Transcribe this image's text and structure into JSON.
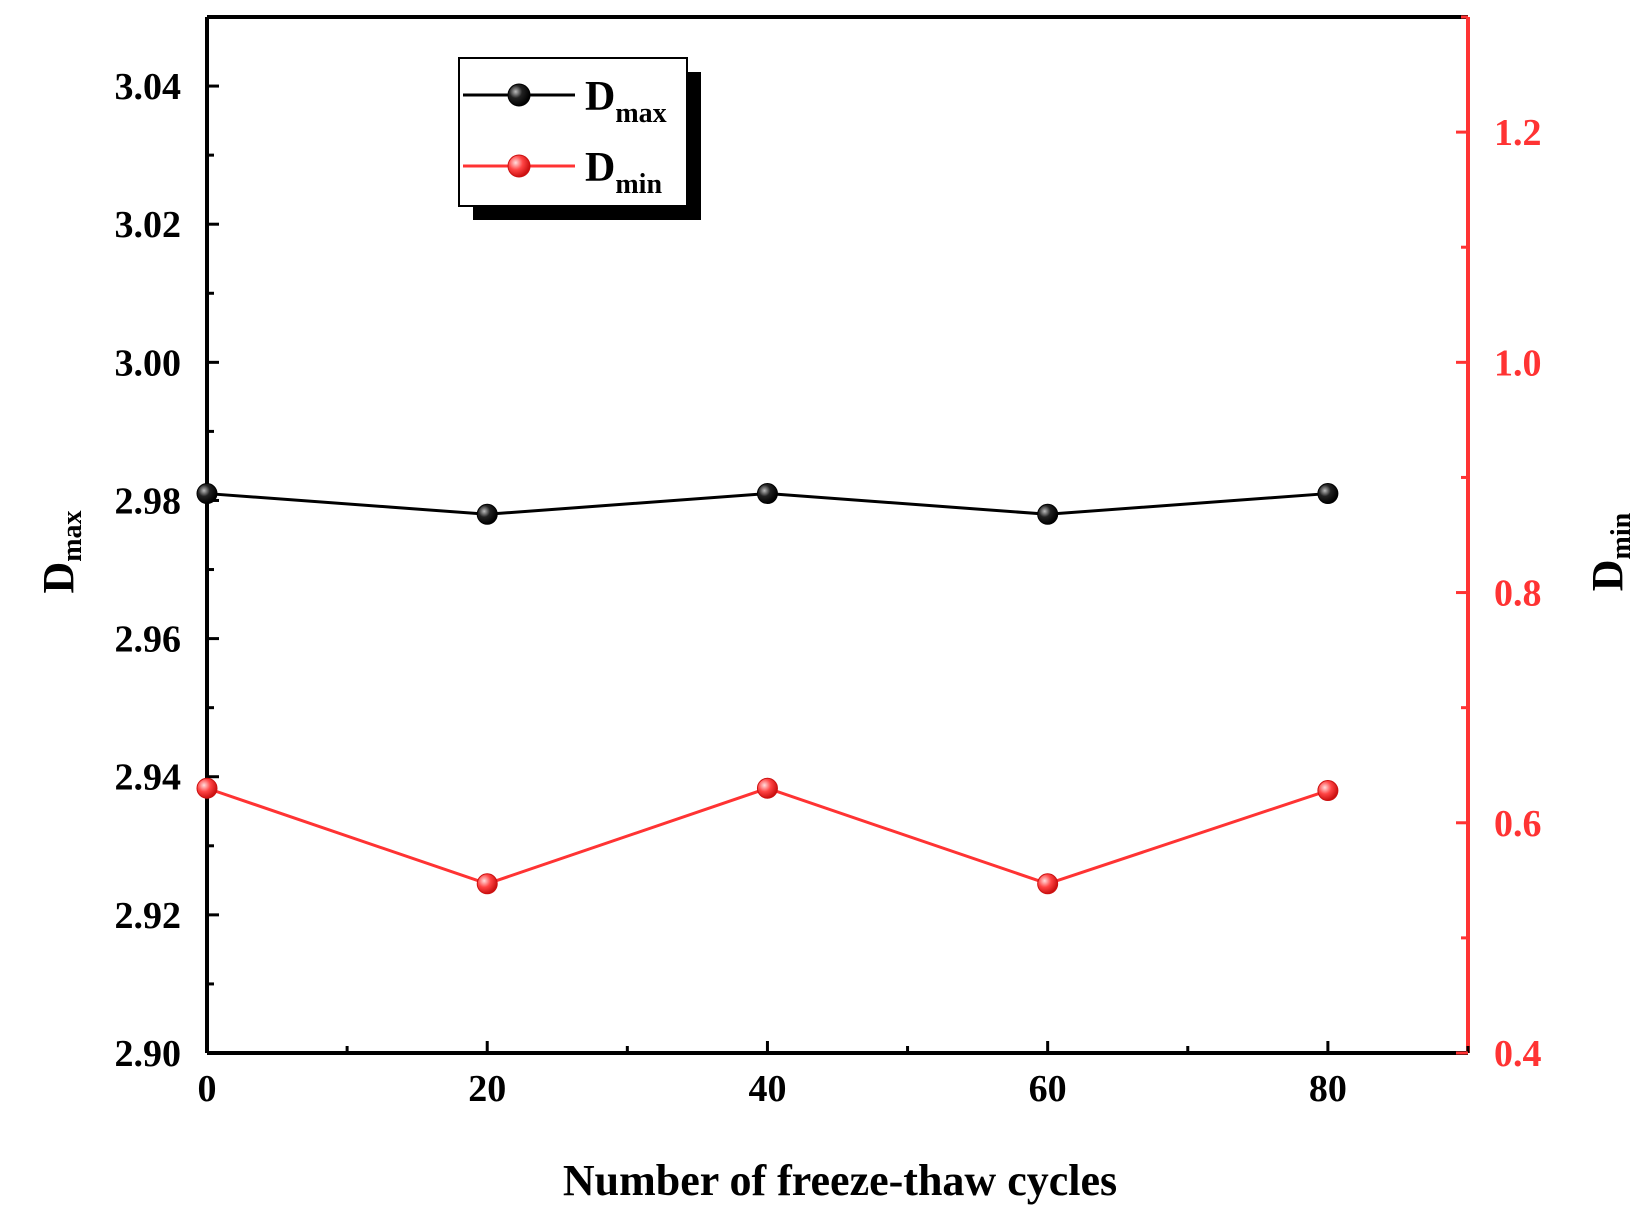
{
  "chart_data": {
    "type": "line",
    "x": [
      0,
      20,
      40,
      60,
      80
    ],
    "xlabel": "Number of freeze-thaw cycles",
    "xlim": [
      0,
      90
    ],
    "xticks": [
      "0",
      "20",
      "40",
      "60",
      "80"
    ],
    "ylabel_left": {
      "main": "D",
      "sub": "max"
    },
    "ylabel_right": {
      "main": "D",
      "sub": "min"
    },
    "ylim_left": [
      2.9,
      3.05
    ],
    "ylim_right": [
      0.4,
      1.3
    ],
    "yticks_left": [
      "2.90",
      "2.92",
      "2.94",
      "2.96",
      "2.98",
      "3.00",
      "3.02",
      "3.04"
    ],
    "yticks_right": [
      "0.4",
      "0.6",
      "0.8",
      "1.0",
      "1.2"
    ],
    "grid": false,
    "legend_position": "top-left",
    "series": [
      {
        "name_main": "D",
        "name_sub": "max",
        "axis": "left",
        "color": "#000000",
        "values": [
          2.981,
          2.978,
          2.981,
          2.978,
          2.981
        ]
      },
      {
        "name_main": "D",
        "name_sub": "min",
        "axis": "right",
        "color": "#ff3333",
        "values": [
          0.63,
          0.547,
          0.63,
          0.547,
          0.628
        ]
      }
    ]
  }
}
